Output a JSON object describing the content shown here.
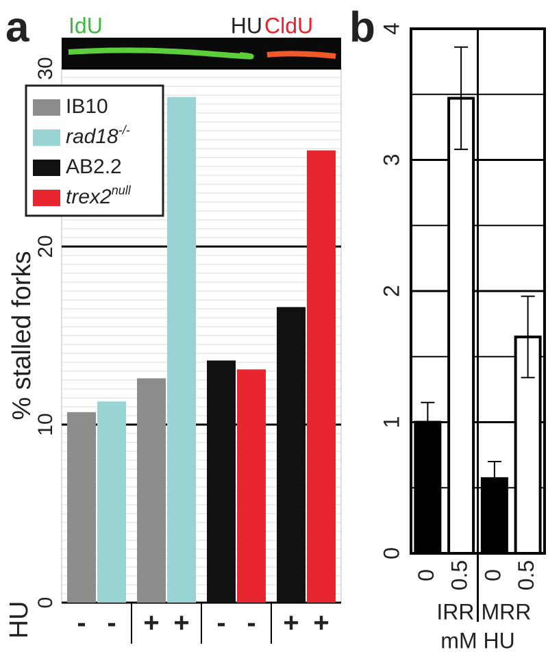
{
  "chart_data": [
    {
      "type": "bar",
      "panel_label": "a",
      "y_label": "% stalled forks",
      "x_label": "HU",
      "image_labels": [
        {
          "text": "IdU",
          "color": "#3db83d"
        },
        {
          "text": "HU",
          "color": "#222222"
        },
        {
          "text": "CldU",
          "color": "#e8202a"
        }
      ],
      "categories": [
        "-",
        "-",
        "+",
        "+",
        "-",
        "-",
        "+",
        "+"
      ],
      "series": [
        {
          "name": "IB10",
          "color": "#8c8c8c",
          "values": [
            10.7,
            null,
            12.6,
            null,
            null,
            null,
            null,
            null
          ]
        },
        {
          "name": "rad18",
          "name_superscript": "-/-",
          "color": "#9ad3d3",
          "values": [
            null,
            11.3,
            null,
            28.4,
            null,
            null,
            null,
            null
          ]
        },
        {
          "name": "AB2.2",
          "color": "#111111",
          "values": [
            null,
            null,
            null,
            null,
            13.6,
            null,
            16.6,
            null
          ]
        },
        {
          "name": "trex2",
          "name_superscript": "null",
          "color": "#e8262f",
          "values": [
            null,
            null,
            null,
            null,
            null,
            13.1,
            null,
            25.4
          ]
        }
      ],
      "ylim": [
        0,
        30
      ],
      "yticks": [
        0,
        10,
        20,
        30
      ],
      "minor_grid": 0.5,
      "grid": true,
      "legend": "upper left"
    },
    {
      "type": "bar",
      "panel_label": "b",
      "x_label": "mM HU",
      "categories": [
        "0",
        "0.5",
        "0",
        "0.5"
      ],
      "groups": [
        "IRR",
        "MRR"
      ],
      "values": [
        1.0,
        3.47,
        0.57,
        1.65
      ],
      "errors": [
        0.15,
        0.39,
        0.13,
        0.31
      ],
      "colors": [
        "#000000",
        "#ffffff",
        "#000000",
        "#ffffff"
      ],
      "ylim": [
        0,
        4
      ],
      "yticks": [
        0,
        1,
        2,
        3,
        4
      ],
      "minor_grid": 0.5,
      "grid": true
    }
  ]
}
